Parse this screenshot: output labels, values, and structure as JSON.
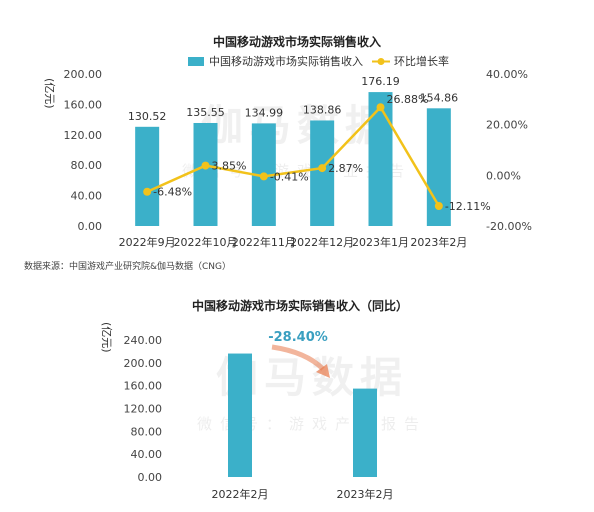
{
  "chart_data": [
    {
      "type": "bar",
      "title": "中国移动游戏市场实际销售收入",
      "ylabel": "(亿元)",
      "categories": [
        "2022年9月",
        "2022年10月",
        "2022年11月",
        "2022年12月",
        "2023年1月",
        "2023年2月"
      ],
      "series": [
        {
          "name": "中国移动游戏市场实际销售收入",
          "type": "bar",
          "axis": "left",
          "color": "#3bb0c9",
          "values": [
            130.52,
            135.55,
            134.99,
            138.86,
            176.19,
            154.86
          ],
          "labels": [
            "130.52",
            "135.55",
            "134.99",
            "138.86",
            "176.19",
            "154.86"
          ]
        },
        {
          "name": "环比增长率",
          "type": "line",
          "axis": "right",
          "color": "#f2c21a",
          "values": [
            -6.48,
            3.85,
            -0.41,
            2.87,
            26.88,
            -12.11
          ],
          "labels": [
            "-6.48%",
            "3.85%",
            "-0.41%",
            "2.87%",
            "26.88%",
            "-12.11%"
          ]
        }
      ],
      "y_left": {
        "min": 0,
        "max": 200,
        "ticks": [
          "0.00",
          "40.00",
          "80.00",
          "120.00",
          "160.00",
          "200.00"
        ]
      },
      "y_right": {
        "min": -20,
        "max": 40,
        "ticks": [
          "-20.00%",
          "0.00%",
          "20.00%",
          "40.00%"
        ]
      },
      "legend": "top",
      "grid": false
    },
    {
      "type": "bar",
      "title": "中国移动游戏市场实际销售收入（同比）",
      "ylabel": "(亿元)",
      "categories": [
        "2022年2月",
        "2023年2月"
      ],
      "series": [
        {
          "values": [
            216.27,
            154.86
          ],
          "color": "#3bb0c9"
        }
      ],
      "ylim": [
        0,
        240
      ],
      "y_ticks": [
        "0.00",
        "40.00",
        "80.00",
        "120.00",
        "160.00",
        "200.00",
        "240.00"
      ],
      "annotation": "-28.40%",
      "grid": false
    }
  ],
  "watermark": {
    "main": "伽马数据",
    "sub": "微信号：游戏产业报告"
  },
  "source": "数据来源：中国游戏产业研究院&伽马数据（CNG）",
  "colors": {
    "bar": "#3bb0c9",
    "line": "#f2c21a",
    "annotation": "#3a9fc0",
    "arrow": "#e8794a"
  }
}
